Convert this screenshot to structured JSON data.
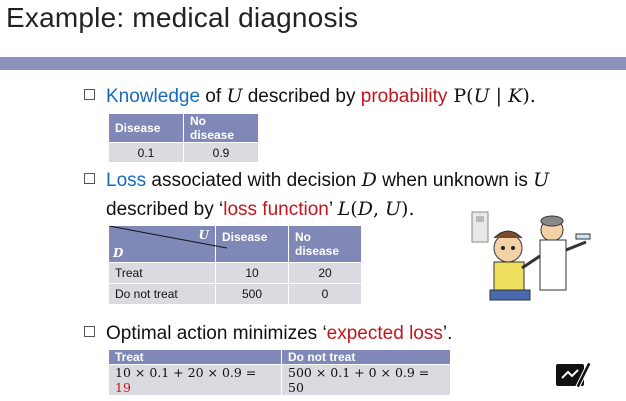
{
  "title": "Example: medical diagnosis",
  "bullets": {
    "b1": {
      "w1": "Knowledge",
      "w2": " of ",
      "U": "U",
      "w3": " described by ",
      "w4": "probability",
      "w5": " P(",
      "w6": "U",
      "w7": " | ",
      "w8": "K",
      "w9": ")."
    },
    "b2": {
      "w1": "Loss",
      "w2": " associated with decision ",
      "D": "D",
      "w3": " when unknown is ",
      "U": "U",
      "line2a": "described by ‘",
      "line2b": "loss function",
      "line2c": "’ ",
      "L": "L",
      "line2d": "(",
      "D2": "D",
      "line2e": ", ",
      "U2": "U",
      "line2f": ")."
    },
    "b3": {
      "w1": "Optimal action minimizes ‘",
      "w2": "expected loss",
      "w3": "’."
    }
  },
  "table1": {
    "headers": [
      "Disease",
      "No disease"
    ],
    "values": [
      "0.1",
      "0.9"
    ]
  },
  "table2": {
    "corner_top": "U",
    "corner_bottom": "D",
    "headers": [
      "Disease",
      "No disease"
    ],
    "rows": [
      {
        "label": "Treat",
        "values": [
          "10",
          "20"
        ]
      },
      {
        "label": "Do not treat",
        "values": [
          "500",
          "0"
        ]
      }
    ]
  },
  "table3": {
    "headers": [
      "Treat",
      "Do not treat"
    ],
    "expr1": "10 × 0.1 + 20 × 0.9 = ",
    "result1": "19",
    "expr2": "500 × 0.1 + 0 × 0.9 = 50"
  },
  "colors": {
    "blue": "#1769c0",
    "red": "#c3151c",
    "band": "#8b93bd",
    "header": "#7f88b6"
  },
  "icons": [
    "doctor-patient-illustration",
    "pen-tablet-icon"
  ]
}
